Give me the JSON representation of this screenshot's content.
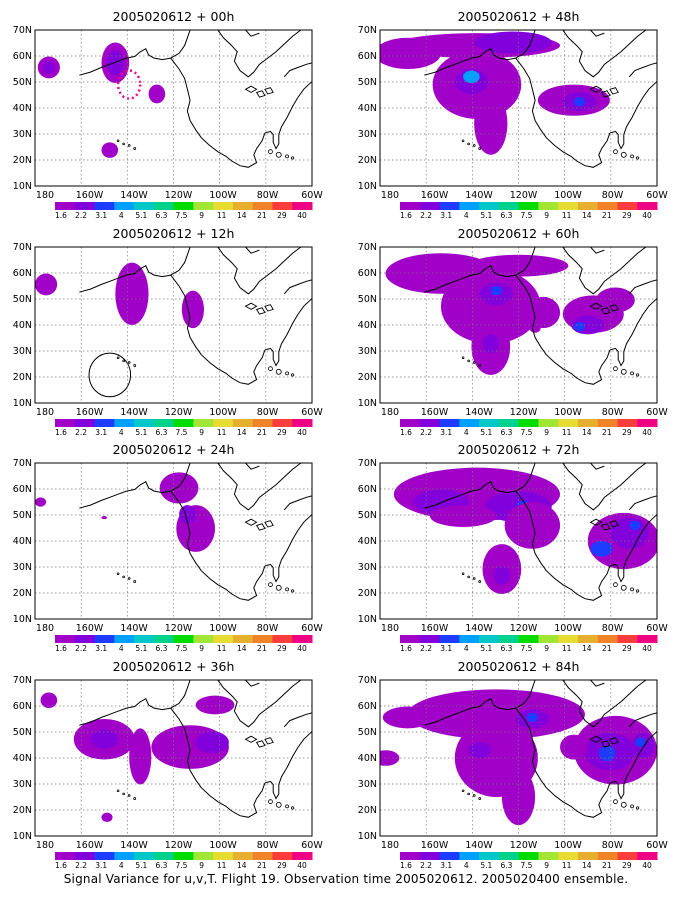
{
  "colorbar": {
    "labels": [
      "1.6",
      "2.2",
      "3.1",
      "4",
      "5.1",
      "6.3",
      "7.5",
      "9",
      "11",
      "14",
      "21",
      "29",
      "40"
    ],
    "colors": [
      "#a000c8",
      "#8200dc",
      "#1e3cff",
      "#00a0ff",
      "#00c8c8",
      "#00d28c",
      "#00dc00",
      "#a0e632",
      "#e6dc32",
      "#e6af2d",
      "#f08228",
      "#fa3c3c",
      "#f00082"
    ]
  },
  "axis": {
    "lat_labels": [
      "70N",
      "60N",
      "50N",
      "40N",
      "30N",
      "20N",
      "10N"
    ],
    "lon_labels": [
      "180",
      "160W",
      "140W",
      "120W",
      "100W",
      "80W",
      "60W"
    ]
  },
  "panels": [
    {
      "id": "p00",
      "title": "2005020612 + 00h",
      "column": 0,
      "row": 0
    },
    {
      "id": "p12",
      "title": "2005020612 + 12h",
      "column": 0,
      "row": 1
    },
    {
      "id": "p24",
      "title": "2005020612 + 24h",
      "column": 0,
      "row": 2
    },
    {
      "id": "p36",
      "title": "2005020612 + 36h",
      "column": 0,
      "row": 3
    },
    {
      "id": "p48",
      "title": "2005020612 + 48h",
      "column": 1,
      "row": 0
    },
    {
      "id": "p60",
      "title": "2005020612 + 60h",
      "column": 1,
      "row": 1
    },
    {
      "id": "p72",
      "title": "2005020612 + 72h",
      "column": 1,
      "row": 2
    },
    {
      "id": "p84",
      "title": "2005020612 + 84h",
      "column": 1,
      "row": 3
    }
  ],
  "caption": "Signal Variance for u,v,T. Flight 19. Observation time 2005020612. 2005020400 ensemble."
}
